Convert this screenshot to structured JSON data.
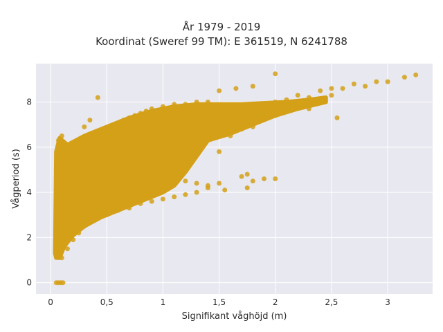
{
  "chart_data": {
    "type": "scatter",
    "title_lines": [
      "År 1979 - 2019",
      "Koordinat (Sweref 99 TM): E 361519, N 6241788"
    ],
    "xlabel": "Signifikant våghöjd (m)",
    "ylabel": "Vågperiod (s)",
    "xlim": [
      -0.13,
      3.4
    ],
    "ylim": [
      -0.5,
      9.7
    ],
    "x_ticks": [
      {
        "value": 0,
        "label": "0"
      },
      {
        "value": 0.5,
        "label": "0,5"
      },
      {
        "value": 1,
        "label": "1"
      },
      {
        "value": 1.5,
        "label": "1,5"
      },
      {
        "value": 2,
        "label": "2"
      },
      {
        "value": 2.5,
        "label": "2,5"
      },
      {
        "value": 3,
        "label": "3"
      }
    ],
    "y_ticks": [
      {
        "value": 0,
        "label": "0"
      },
      {
        "value": 2,
        "label": "2"
      },
      {
        "value": 4,
        "label": "4"
      },
      {
        "value": 6,
        "label": "6"
      },
      {
        "value": 8,
        "label": "8"
      }
    ],
    "grid": true,
    "marker_color": "#d4a017",
    "plot_background": "#e8e8f0",
    "series": [
      {
        "points": [
          [
            0.05,
            0.0
          ],
          [
            0.07,
            0.0
          ],
          [
            0.09,
            0.0
          ],
          [
            0.11,
            0.0
          ],
          [
            0.05,
            1.4
          ],
          [
            0.07,
            1.2
          ],
          [
            0.1,
            1.1
          ],
          [
            0.08,
            1.6
          ],
          [
            0.06,
            2.2
          ],
          [
            0.05,
            3.0
          ],
          [
            0.06,
            4.0
          ],
          [
            0.05,
            5.0
          ],
          [
            0.06,
            5.8
          ],
          [
            0.07,
            6.3
          ],
          [
            0.1,
            6.5
          ],
          [
            0.12,
            2.0
          ],
          [
            0.15,
            1.5
          ],
          [
            0.2,
            1.9
          ],
          [
            0.25,
            2.2
          ],
          [
            0.3,
            2.5
          ],
          [
            0.4,
            2.8
          ],
          [
            0.5,
            3.0
          ],
          [
            0.6,
            3.2
          ],
          [
            0.7,
            3.3
          ],
          [
            0.8,
            3.5
          ],
          [
            0.9,
            3.6
          ],
          [
            1.0,
            3.7
          ],
          [
            1.1,
            3.8
          ],
          [
            1.2,
            3.9
          ],
          [
            1.3,
            4.0
          ],
          [
            1.4,
            4.2
          ],
          [
            1.5,
            4.4
          ],
          [
            0.15,
            3.0
          ],
          [
            0.2,
            3.5
          ],
          [
            0.25,
            4.0
          ],
          [
            0.3,
            4.2
          ],
          [
            0.35,
            4.5
          ],
          [
            0.4,
            4.6
          ],
          [
            0.45,
            5.0
          ],
          [
            0.5,
            5.2
          ],
          [
            0.55,
            5.0
          ],
          [
            0.6,
            5.4
          ],
          [
            0.7,
            5.6
          ],
          [
            0.8,
            5.8
          ],
          [
            0.9,
            6.0
          ],
          [
            1.0,
            6.2
          ],
          [
            1.1,
            6.3
          ],
          [
            1.2,
            6.4
          ],
          [
            1.3,
            6.6
          ],
          [
            1.4,
            6.8
          ],
          [
            0.15,
            5.5
          ],
          [
            0.2,
            5.9
          ],
          [
            0.25,
            6.1
          ],
          [
            0.3,
            6.2
          ],
          [
            0.35,
            6.4
          ],
          [
            0.4,
            6.5
          ],
          [
            0.45,
            6.6
          ],
          [
            0.5,
            6.8
          ],
          [
            0.55,
            6.9
          ],
          [
            0.6,
            7.0
          ],
          [
            0.65,
            7.2
          ],
          [
            0.7,
            7.3
          ],
          [
            0.75,
            7.4
          ],
          [
            0.8,
            7.5
          ],
          [
            0.85,
            7.6
          ],
          [
            0.9,
            7.7
          ],
          [
            1.0,
            7.8
          ],
          [
            1.1,
            7.9
          ],
          [
            1.2,
            7.9
          ],
          [
            1.3,
            8.0
          ],
          [
            1.4,
            8.0
          ],
          [
            0.42,
            8.2
          ],
          [
            0.35,
            7.2
          ],
          [
            0.3,
            6.9
          ],
          [
            1.5,
            5.8
          ],
          [
            1.5,
            7.0
          ],
          [
            1.6,
            6.5
          ],
          [
            1.6,
            7.5
          ],
          [
            1.7,
            6.8
          ],
          [
            1.7,
            7.4
          ],
          [
            1.8,
            6.9
          ],
          [
            1.8,
            7.6
          ],
          [
            1.9,
            7.3
          ],
          [
            1.9,
            7.8
          ],
          [
            2.0,
            7.4
          ],
          [
            2.0,
            8.0
          ],
          [
            2.1,
            7.6
          ],
          [
            2.1,
            8.1
          ],
          [
            2.2,
            7.9
          ],
          [
            2.2,
            8.3
          ],
          [
            2.3,
            7.7
          ],
          [
            2.3,
            8.2
          ],
          [
            2.4,
            8.1
          ],
          [
            2.4,
            8.5
          ],
          [
            2.5,
            8.3
          ],
          [
            2.5,
            8.6
          ],
          [
            2.6,
            8.6
          ],
          [
            2.7,
            8.8
          ],
          [
            2.8,
            8.7
          ],
          [
            2.9,
            8.9
          ],
          [
            3.0,
            8.9
          ],
          [
            3.15,
            9.1
          ],
          [
            3.25,
            9.2
          ],
          [
            2.0,
            9.25
          ],
          [
            1.5,
            8.5
          ],
          [
            1.65,
            8.6
          ],
          [
            1.8,
            8.7
          ],
          [
            0.9,
            4.9
          ],
          [
            1.0,
            4.4
          ],
          [
            1.1,
            4.4
          ],
          [
            1.2,
            4.5
          ],
          [
            1.3,
            4.4
          ],
          [
            1.4,
            4.3
          ],
          [
            1.55,
            4.1
          ],
          [
            1.7,
            4.7
          ],
          [
            1.75,
            4.8
          ],
          [
            1.8,
            4.5
          ],
          [
            1.75,
            4.2
          ],
          [
            1.9,
            4.6
          ],
          [
            2.0,
            4.6
          ],
          [
            2.2,
            8.0
          ],
          [
            2.55,
            7.3
          ]
        ]
      }
    ]
  }
}
